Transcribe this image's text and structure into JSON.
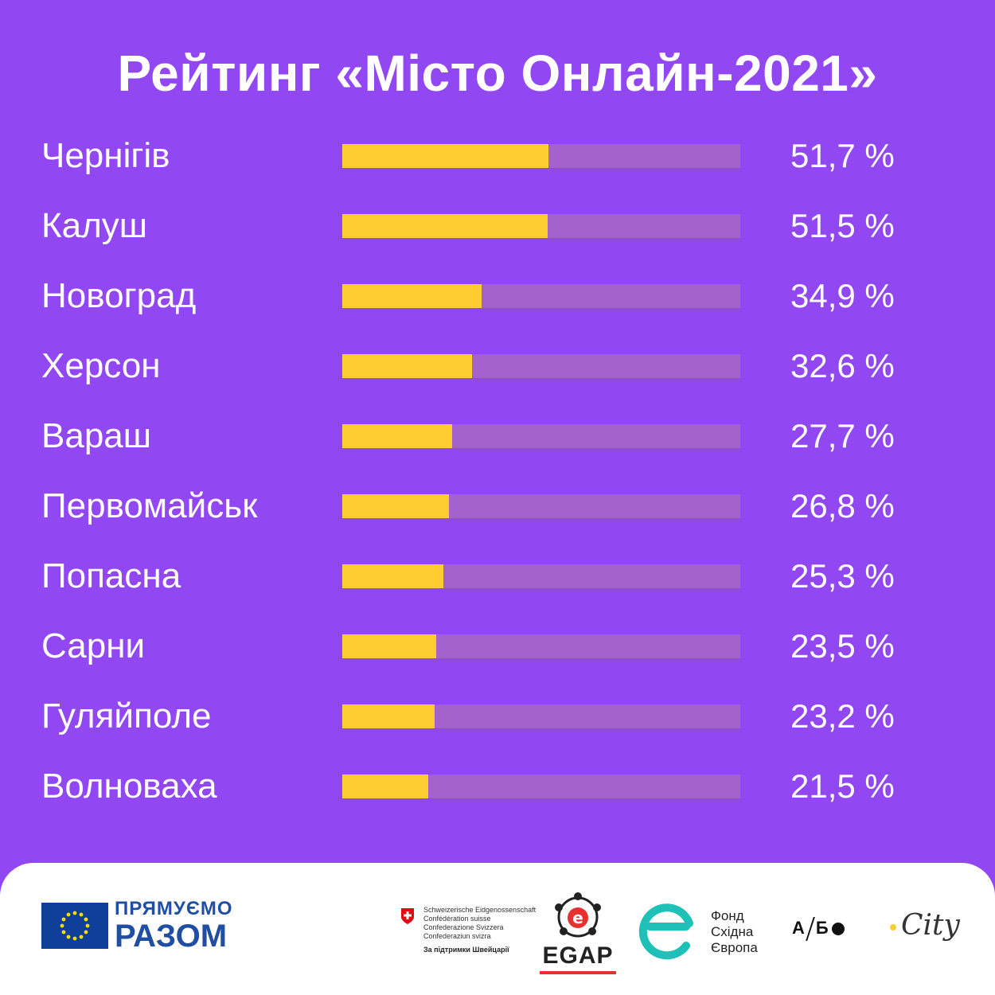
{
  "chart_data": {
    "type": "bar",
    "orientation": "horizontal",
    "title": "Рейтинг «Місто Онлайн-2021»",
    "categories": [
      "Чернігів",
      "Калуш",
      "Новоград",
      "Херсон",
      "Вараш",
      "Первомайськ",
      "Попасна",
      "Сарни",
      "Гуляйполе",
      "Волноваха"
    ],
    "values": [
      51.7,
      51.5,
      34.9,
      32.6,
      27.7,
      26.8,
      25.3,
      23.5,
      23.2,
      21.5
    ],
    "value_labels": [
      "51,7 %",
      "51,5 %",
      "34,9 %",
      "32,6 %",
      "27,7 %",
      "26,8 %",
      "25,3 %",
      "23,5 %",
      "23,2 %",
      "21,5 %"
    ],
    "xlim": [
      0,
      100
    ],
    "grid": false,
    "colors": {
      "bar": "#fdcd31",
      "track": "#a463cc",
      "background": "#9148f2"
    }
  },
  "footer": {
    "eu_line1": "ПРЯМУЄМО",
    "eu_line2": "РАЗОМ",
    "swiss_lines": [
      "Schweizerische Eidgenossenschaft",
      "Confédération suisse",
      "Confederazione Svizzera",
      "Confederaziun svizra"
    ],
    "swiss_support": "За підтримки Швейцарії",
    "egap": "EGAP",
    "fund_lines": [
      "Фонд",
      "Східна",
      "Європа"
    ],
    "abo_a": "А",
    "abo_b": "Б",
    "city": "City"
  }
}
